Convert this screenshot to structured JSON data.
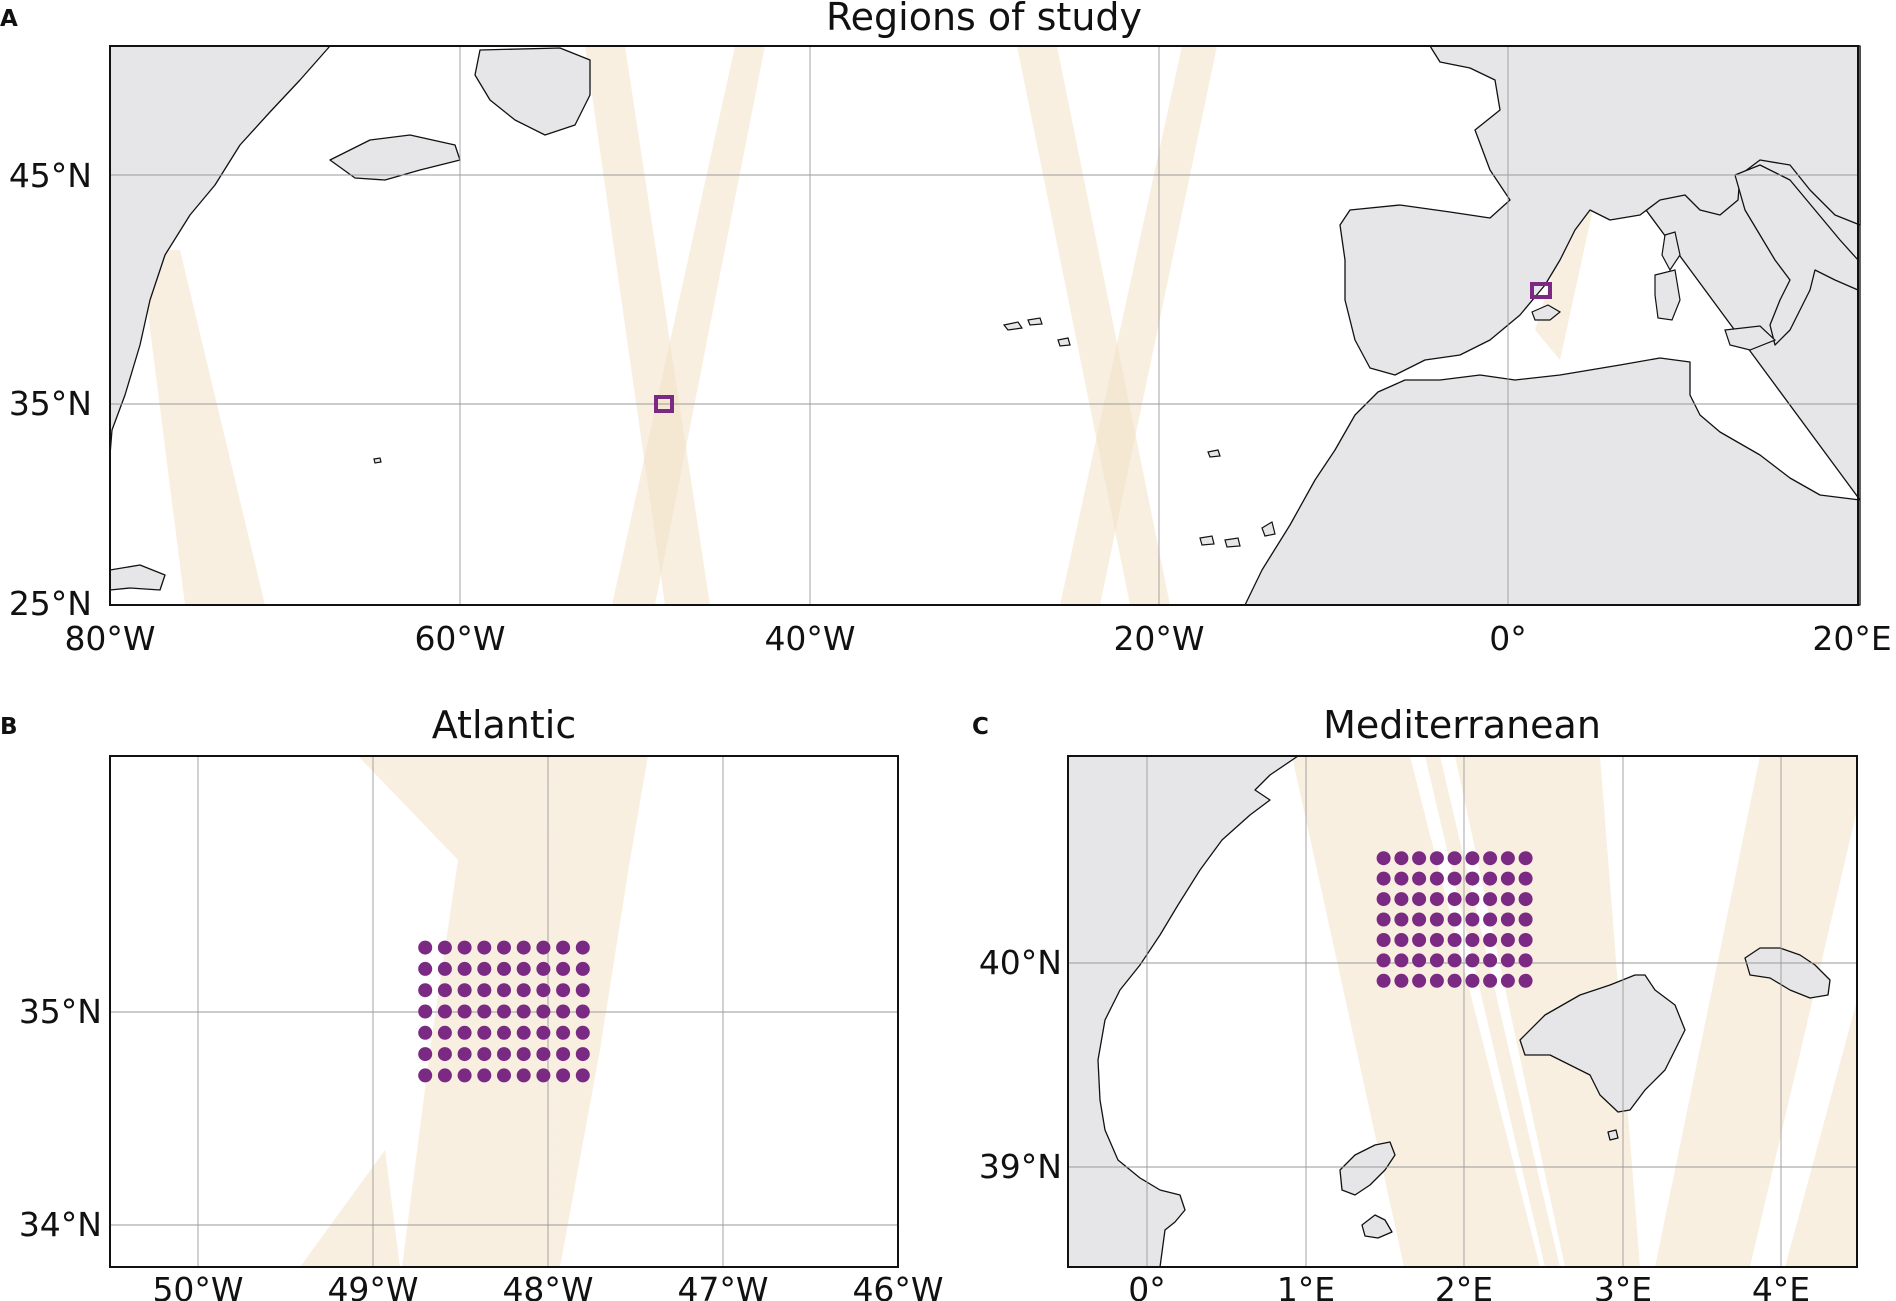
{
  "panels": {
    "a": {
      "letter": "A",
      "title": "Regions of study",
      "x_ticks": [
        "80°W",
        "60°W",
        "40°W",
        "20°W",
        "0°",
        "20°E"
      ],
      "y_ticks": [
        "45°N",
        "35°N",
        "25°N"
      ]
    },
    "b": {
      "letter": "B",
      "title": "Atlantic",
      "x_ticks": [
        "50°W",
        "49°W",
        "48°W",
        "47°W",
        "46°W"
      ],
      "y_ticks": [
        "35°N",
        "34°N"
      ]
    },
    "c": {
      "letter": "C",
      "title": "Mediterranean",
      "x_ticks": [
        "0°",
        "1°E",
        "2°E",
        "3°E",
        "4°E"
      ],
      "y_ticks": [
        "40°N",
        "39°N"
      ]
    }
  },
  "colors": {
    "land": "#e6e6e8",
    "swath": "#f3e1c8",
    "sample_points": "#7b2a84"
  },
  "map_data": {
    "a": {
      "lon_range": [
        -80,
        20
      ],
      "lat_range": [
        25,
        50
      ],
      "sample_regions": [
        [
          -48.3,
          35
        ],
        [
          1.9,
          40.2
        ]
      ]
    },
    "b": {
      "lon_range": [
        -50.5,
        -46
      ],
      "lat_range": [
        33.8,
        36.2
      ],
      "grid": {
        "lon_range": [
          -48.7,
          -47.8
        ],
        "lat_range": [
          34.7,
          35.3
        ],
        "n_lon": 9,
        "n_lat": 7
      }
    },
    "c": {
      "lon_range": [
        -0.5,
        4.5
      ],
      "lat_range": [
        38.5,
        41
      ],
      "grid": {
        "lon_range": [
          1.5,
          2.4
        ],
        "lat_range": [
          39.9,
          40.5
        ],
        "n_lon": 9,
        "n_lat": 7
      }
    }
  }
}
